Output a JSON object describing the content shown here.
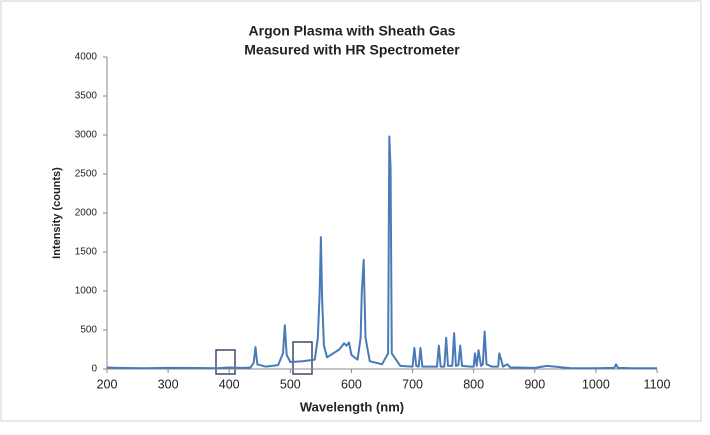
{
  "chart_data": {
    "type": "line",
    "title": "Argon Plasma with Sheath Gas",
    "subtitle": "Measured with HR Spectrometer",
    "x_label": "Wavelength (nm)",
    "y_label": "Intensity (counts)",
    "x": [
      200,
      220,
      260,
      300,
      350,
      380,
      400,
      420,
      435,
      440,
      443,
      446,
      460,
      480,
      488,
      491,
      494,
      500,
      520,
      540,
      545,
      548,
      550,
      552,
      555,
      560,
      580,
      588,
      592,
      596,
      600,
      610,
      615,
      617,
      620,
      623,
      630,
      650,
      660,
      662,
      664,
      666,
      680,
      700,
      703,
      706,
      710,
      713,
      716,
      730,
      740,
      743,
      746,
      752,
      755,
      758,
      765,
      768,
      771,
      775,
      778,
      781,
      795,
      800,
      802,
      805,
      808,
      812,
      815,
      818,
      821,
      830,
      840,
      842,
      845,
      848,
      855,
      860,
      870,
      900,
      920,
      960,
      1000,
      1030,
      1033,
      1036,
      1060,
      1100
    ],
    "values": [
      20,
      15,
      10,
      15,
      12,
      10,
      20,
      15,
      20,
      80,
      280,
      60,
      30,
      50,
      200,
      560,
      180,
      90,
      100,
      120,
      400,
      980,
      1690,
      900,
      300,
      150,
      250,
      330,
      300,
      340,
      180,
      120,
      400,
      1000,
      1400,
      400,
      100,
      60,
      200,
      2980,
      2580,
      200,
      40,
      30,
      270,
      40,
      30,
      270,
      30,
      30,
      30,
      300,
      30,
      30,
      400,
      40,
      40,
      460,
      40,
      50,
      300,
      40,
      30,
      30,
      200,
      40,
      240,
      40,
      60,
      480,
      60,
      30,
      30,
      200,
      120,
      30,
      60,
      20,
      20,
      15,
      40,
      10,
      10,
      15,
      60,
      15,
      10,
      10
    ],
    "color": "#4a7ab8",
    "xlim": [
      200,
      1100
    ],
    "xticks": [
      200,
      300,
      400,
      500,
      600,
      700,
      800,
      900,
      1000,
      1100
    ],
    "ylim": [
      0,
      4000
    ],
    "yticks": [
      0,
      500,
      1000,
      1500,
      2000,
      2500,
      3000,
      3500,
      4000
    ],
    "grid": false
  }
}
